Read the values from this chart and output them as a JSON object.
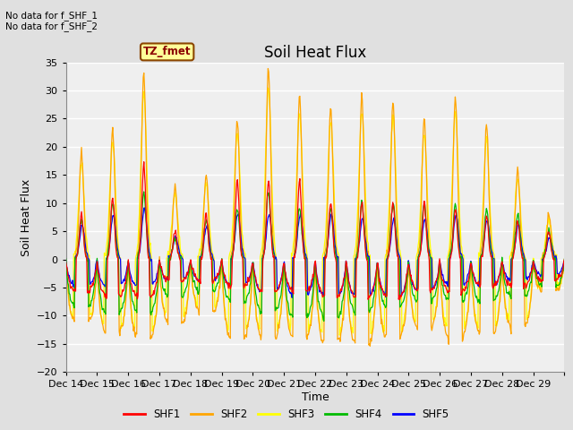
{
  "title": "Soil Heat Flux",
  "ylabel": "Soil Heat Flux",
  "xlabel": "Time",
  "ylim": [
    -20,
    35
  ],
  "yticks": [
    -20,
    -15,
    -10,
    -5,
    0,
    5,
    10,
    15,
    20,
    25,
    30,
    35
  ],
  "xtick_labels": [
    "Dec 14",
    "Dec 15",
    "Dec 16",
    "Dec 17",
    "Dec 18",
    "Dec 19",
    "Dec 20",
    "Dec 21",
    "Dec 22",
    "Dec 23",
    "Dec 24",
    "Dec 25",
    "Dec 26",
    "Dec 27",
    "Dec 28",
    "Dec 29"
  ],
  "colors": {
    "SHF1": "#ff0000",
    "SHF2": "#ffa500",
    "SHF3": "#ffff00",
    "SHF4": "#00bb00",
    "SHF5": "#0000ff"
  },
  "legend_labels": [
    "SHF1",
    "SHF2",
    "SHF3",
    "SHF4",
    "SHF5"
  ],
  "annotations": [
    "No data for f_SHF_1",
    "No data for f_SHF_2"
  ],
  "box_label": "TZ_fmet",
  "background_color": "#e0e0e0",
  "plot_bg_color": "#efefef",
  "grid_color": "#ffffff",
  "title_fontsize": 12,
  "label_fontsize": 9,
  "tick_fontsize": 8
}
